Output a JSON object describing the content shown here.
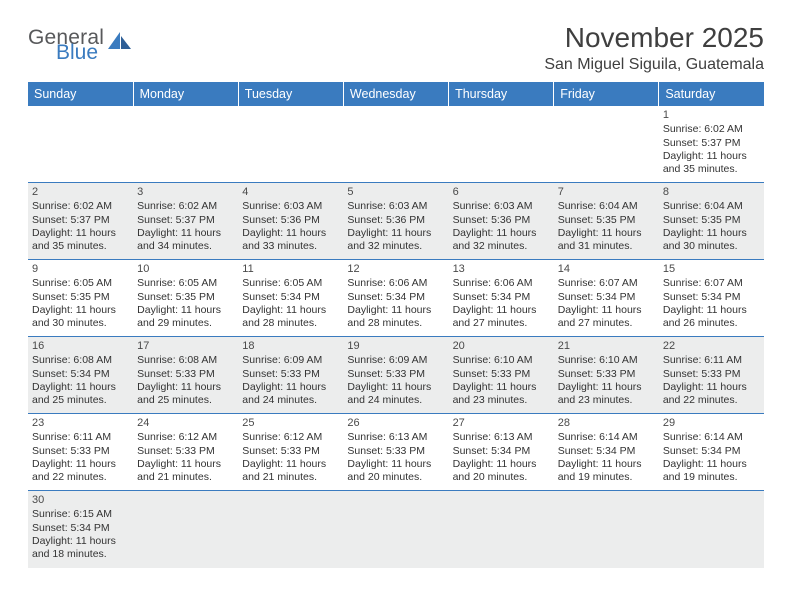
{
  "logo": {
    "general": "General",
    "blue": "Blue"
  },
  "title": "November 2025",
  "location": "San Miguel Siguila, Guatemala",
  "colors": {
    "header_bg": "#3a7bbf",
    "header_fg": "#ffffff",
    "cell_border": "#3a7bbf",
    "odd_row_bg": "#eceded",
    "page_bg": "#ffffff",
    "text": "#333333",
    "title_color": "#3f3f3f",
    "logo_general": "#58595b",
    "logo_blue": "#3a7bbf"
  },
  "typography": {
    "title_fontsize": 28,
    "location_fontsize": 16,
    "header_fontsize": 12.5,
    "cell_fontsize": 10.5,
    "logo_fontsize": 21
  },
  "weekdays": [
    "Sunday",
    "Monday",
    "Tuesday",
    "Wednesday",
    "Thursday",
    "Friday",
    "Saturday"
  ],
  "weeks": [
    [
      null,
      null,
      null,
      null,
      null,
      null,
      {
        "n": "1",
        "sr": "Sunrise: 6:02 AM",
        "ss": "Sunset: 5:37 PM",
        "d1": "Daylight: 11 hours",
        "d2": "and 35 minutes."
      }
    ],
    [
      {
        "n": "2",
        "sr": "Sunrise: 6:02 AM",
        "ss": "Sunset: 5:37 PM",
        "d1": "Daylight: 11 hours",
        "d2": "and 35 minutes."
      },
      {
        "n": "3",
        "sr": "Sunrise: 6:02 AM",
        "ss": "Sunset: 5:37 PM",
        "d1": "Daylight: 11 hours",
        "d2": "and 34 minutes."
      },
      {
        "n": "4",
        "sr": "Sunrise: 6:03 AM",
        "ss": "Sunset: 5:36 PM",
        "d1": "Daylight: 11 hours",
        "d2": "and 33 minutes."
      },
      {
        "n": "5",
        "sr": "Sunrise: 6:03 AM",
        "ss": "Sunset: 5:36 PM",
        "d1": "Daylight: 11 hours",
        "d2": "and 32 minutes."
      },
      {
        "n": "6",
        "sr": "Sunrise: 6:03 AM",
        "ss": "Sunset: 5:36 PM",
        "d1": "Daylight: 11 hours",
        "d2": "and 32 minutes."
      },
      {
        "n": "7",
        "sr": "Sunrise: 6:04 AM",
        "ss": "Sunset: 5:35 PM",
        "d1": "Daylight: 11 hours",
        "d2": "and 31 minutes."
      },
      {
        "n": "8",
        "sr": "Sunrise: 6:04 AM",
        "ss": "Sunset: 5:35 PM",
        "d1": "Daylight: 11 hours",
        "d2": "and 30 minutes."
      }
    ],
    [
      {
        "n": "9",
        "sr": "Sunrise: 6:05 AM",
        "ss": "Sunset: 5:35 PM",
        "d1": "Daylight: 11 hours",
        "d2": "and 30 minutes."
      },
      {
        "n": "10",
        "sr": "Sunrise: 6:05 AM",
        "ss": "Sunset: 5:35 PM",
        "d1": "Daylight: 11 hours",
        "d2": "and 29 minutes."
      },
      {
        "n": "11",
        "sr": "Sunrise: 6:05 AM",
        "ss": "Sunset: 5:34 PM",
        "d1": "Daylight: 11 hours",
        "d2": "and 28 minutes."
      },
      {
        "n": "12",
        "sr": "Sunrise: 6:06 AM",
        "ss": "Sunset: 5:34 PM",
        "d1": "Daylight: 11 hours",
        "d2": "and 28 minutes."
      },
      {
        "n": "13",
        "sr": "Sunrise: 6:06 AM",
        "ss": "Sunset: 5:34 PM",
        "d1": "Daylight: 11 hours",
        "d2": "and 27 minutes."
      },
      {
        "n": "14",
        "sr": "Sunrise: 6:07 AM",
        "ss": "Sunset: 5:34 PM",
        "d1": "Daylight: 11 hours",
        "d2": "and 27 minutes."
      },
      {
        "n": "15",
        "sr": "Sunrise: 6:07 AM",
        "ss": "Sunset: 5:34 PM",
        "d1": "Daylight: 11 hours",
        "d2": "and 26 minutes."
      }
    ],
    [
      {
        "n": "16",
        "sr": "Sunrise: 6:08 AM",
        "ss": "Sunset: 5:34 PM",
        "d1": "Daylight: 11 hours",
        "d2": "and 25 minutes."
      },
      {
        "n": "17",
        "sr": "Sunrise: 6:08 AM",
        "ss": "Sunset: 5:33 PM",
        "d1": "Daylight: 11 hours",
        "d2": "and 25 minutes."
      },
      {
        "n": "18",
        "sr": "Sunrise: 6:09 AM",
        "ss": "Sunset: 5:33 PM",
        "d1": "Daylight: 11 hours",
        "d2": "and 24 minutes."
      },
      {
        "n": "19",
        "sr": "Sunrise: 6:09 AM",
        "ss": "Sunset: 5:33 PM",
        "d1": "Daylight: 11 hours",
        "d2": "and 24 minutes."
      },
      {
        "n": "20",
        "sr": "Sunrise: 6:10 AM",
        "ss": "Sunset: 5:33 PM",
        "d1": "Daylight: 11 hours",
        "d2": "and 23 minutes."
      },
      {
        "n": "21",
        "sr": "Sunrise: 6:10 AM",
        "ss": "Sunset: 5:33 PM",
        "d1": "Daylight: 11 hours",
        "d2": "and 23 minutes."
      },
      {
        "n": "22",
        "sr": "Sunrise: 6:11 AM",
        "ss": "Sunset: 5:33 PM",
        "d1": "Daylight: 11 hours",
        "d2": "and 22 minutes."
      }
    ],
    [
      {
        "n": "23",
        "sr": "Sunrise: 6:11 AM",
        "ss": "Sunset: 5:33 PM",
        "d1": "Daylight: 11 hours",
        "d2": "and 22 minutes."
      },
      {
        "n": "24",
        "sr": "Sunrise: 6:12 AM",
        "ss": "Sunset: 5:33 PM",
        "d1": "Daylight: 11 hours",
        "d2": "and 21 minutes."
      },
      {
        "n": "25",
        "sr": "Sunrise: 6:12 AM",
        "ss": "Sunset: 5:33 PM",
        "d1": "Daylight: 11 hours",
        "d2": "and 21 minutes."
      },
      {
        "n": "26",
        "sr": "Sunrise: 6:13 AM",
        "ss": "Sunset: 5:33 PM",
        "d1": "Daylight: 11 hours",
        "d2": "and 20 minutes."
      },
      {
        "n": "27",
        "sr": "Sunrise: 6:13 AM",
        "ss": "Sunset: 5:34 PM",
        "d1": "Daylight: 11 hours",
        "d2": "and 20 minutes."
      },
      {
        "n": "28",
        "sr": "Sunrise: 6:14 AM",
        "ss": "Sunset: 5:34 PM",
        "d1": "Daylight: 11 hours",
        "d2": "and 19 minutes."
      },
      {
        "n": "29",
        "sr": "Sunrise: 6:14 AM",
        "ss": "Sunset: 5:34 PM",
        "d1": "Daylight: 11 hours",
        "d2": "and 19 minutes."
      }
    ],
    [
      {
        "n": "30",
        "sr": "Sunrise: 6:15 AM",
        "ss": "Sunset: 5:34 PM",
        "d1": "Daylight: 11 hours",
        "d2": "and 18 minutes."
      },
      null,
      null,
      null,
      null,
      null,
      null
    ]
  ]
}
